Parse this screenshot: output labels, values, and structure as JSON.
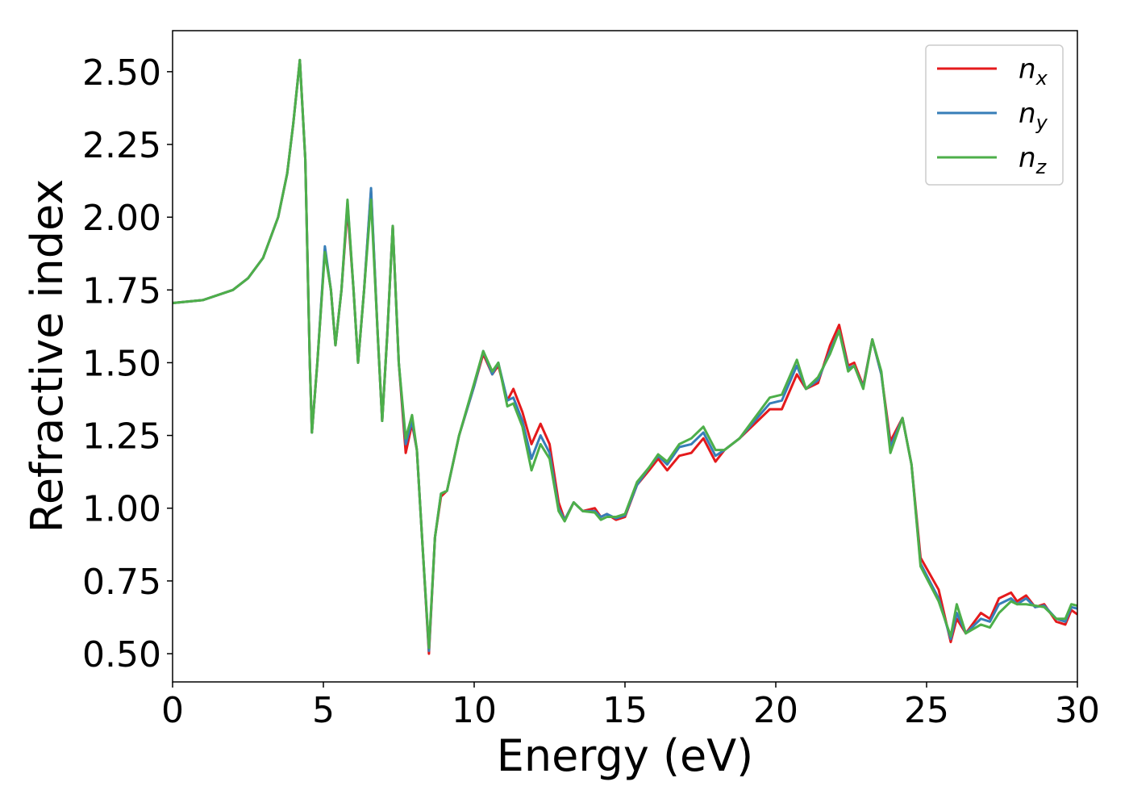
{
  "chart_data": {
    "type": "line",
    "xlabel": "Energy (eV)",
    "ylabel": "Refractive index",
    "x": [
      0,
      1,
      2,
      2.5,
      3,
      3.5,
      3.8,
      4.0,
      4.22,
      4.4,
      4.55,
      4.62,
      4.8,
      5.05,
      5.25,
      5.4,
      5.6,
      5.8,
      6.0,
      6.15,
      6.35,
      6.58,
      6.8,
      6.95,
      7.12,
      7.3,
      7.5,
      7.73,
      7.94,
      8.1,
      8.3,
      8.5,
      8.7,
      8.9,
      9.1,
      9.5,
      10.0,
      10.3,
      10.6,
      10.8,
      11.1,
      11.3,
      11.6,
      11.9,
      12.2,
      12.5,
      12.8,
      13.0,
      13.3,
      13.6,
      14.0,
      14.2,
      14.4,
      14.7,
      15.0,
      15.4,
      15.8,
      16.1,
      16.4,
      16.8,
      17.2,
      17.6,
      18.0,
      18.3,
      18.8,
      19.3,
      19.8,
      20.2,
      20.7,
      21.0,
      21.4,
      21.8,
      22.1,
      22.4,
      22.6,
      22.9,
      23.2,
      23.5,
      23.8,
      24.2,
      24.5,
      24.8,
      25.4,
      25.8,
      26.0,
      26.3,
      26.8,
      27.1,
      27.4,
      27.8,
      28.0,
      28.3,
      28.6,
      28.9,
      29.3,
      29.6,
      29.8,
      30
    ],
    "series": [
      {
        "name": "nx",
        "color": "#e41a1c",
        "values": [
          1.705,
          1.715,
          1.75,
          1.79,
          1.86,
          2.0,
          2.15,
          2.32,
          2.54,
          2.2,
          1.5,
          1.26,
          1.5,
          1.89,
          1.75,
          1.56,
          1.75,
          2.03,
          1.75,
          1.5,
          1.75,
          2.09,
          1.6,
          1.3,
          1.6,
          1.97,
          1.5,
          1.19,
          1.29,
          1.2,
          0.85,
          0.5,
          0.9,
          1.04,
          1.06,
          1.25,
          1.42,
          1.53,
          1.46,
          1.49,
          1.37,
          1.41,
          1.33,
          1.22,
          1.29,
          1.22,
          1.02,
          0.96,
          1.02,
          0.99,
          1.0,
          0.97,
          0.98,
          0.96,
          0.97,
          1.08,
          1.13,
          1.17,
          1.13,
          1.18,
          1.19,
          1.24,
          1.16,
          1.2,
          1.24,
          1.29,
          1.34,
          1.34,
          1.46,
          1.41,
          1.43,
          1.56,
          1.63,
          1.49,
          1.5,
          1.42,
          1.58,
          1.46,
          1.23,
          1.31,
          1.15,
          0.83,
          0.72,
          0.54,
          0.62,
          0.57,
          0.64,
          0.62,
          0.69,
          0.71,
          0.68,
          0.7,
          0.66,
          0.67,
          0.61,
          0.6,
          0.65,
          0.635
        ]
      },
      {
        "name": "ny",
        "color": "#377eb8",
        "values": [
          1.705,
          1.715,
          1.75,
          1.79,
          1.86,
          2.0,
          2.15,
          2.32,
          2.54,
          2.2,
          1.5,
          1.26,
          1.5,
          1.9,
          1.75,
          1.56,
          1.75,
          2.05,
          1.75,
          1.5,
          1.75,
          2.1,
          1.6,
          1.3,
          1.6,
          1.97,
          1.5,
          1.22,
          1.3,
          1.2,
          0.85,
          0.51,
          0.9,
          1.05,
          1.06,
          1.25,
          1.42,
          1.54,
          1.46,
          1.5,
          1.37,
          1.38,
          1.3,
          1.17,
          1.25,
          1.19,
          1.0,
          0.96,
          1.02,
          0.99,
          0.99,
          0.97,
          0.98,
          0.965,
          0.975,
          1.08,
          1.14,
          1.18,
          1.15,
          1.21,
          1.22,
          1.26,
          1.18,
          1.2,
          1.24,
          1.3,
          1.36,
          1.37,
          1.49,
          1.41,
          1.44,
          1.54,
          1.61,
          1.48,
          1.49,
          1.415,
          1.58,
          1.46,
          1.21,
          1.31,
          1.15,
          0.81,
          0.69,
          0.55,
          0.64,
          0.57,
          0.62,
          0.61,
          0.67,
          0.69,
          0.67,
          0.69,
          0.66,
          0.665,
          0.62,
          0.61,
          0.66,
          0.655
        ]
      },
      {
        "name": "nz",
        "color": "#4daf4a",
        "values": [
          1.705,
          1.715,
          1.75,
          1.79,
          1.86,
          2.0,
          2.15,
          2.32,
          2.54,
          2.2,
          1.5,
          1.26,
          1.5,
          1.88,
          1.75,
          1.56,
          1.75,
          2.06,
          1.75,
          1.5,
          1.75,
          2.06,
          1.6,
          1.3,
          1.6,
          1.97,
          1.5,
          1.24,
          1.32,
          1.2,
          0.85,
          0.52,
          0.9,
          1.05,
          1.06,
          1.25,
          1.43,
          1.54,
          1.47,
          1.5,
          1.35,
          1.36,
          1.28,
          1.13,
          1.22,
          1.17,
          0.99,
          0.955,
          1.02,
          0.99,
          0.985,
          0.96,
          0.97,
          0.97,
          0.98,
          1.09,
          1.14,
          1.185,
          1.16,
          1.22,
          1.24,
          1.28,
          1.2,
          1.2,
          1.24,
          1.31,
          1.38,
          1.39,
          1.51,
          1.41,
          1.45,
          1.53,
          1.61,
          1.47,
          1.49,
          1.41,
          1.58,
          1.47,
          1.19,
          1.31,
          1.15,
          0.8,
          0.68,
          0.56,
          0.67,
          0.57,
          0.6,
          0.59,
          0.64,
          0.68,
          0.67,
          0.67,
          0.665,
          0.66,
          0.62,
          0.62,
          0.67,
          0.665
        ]
      }
    ],
    "xlim": [
      0,
      30
    ],
    "xticks": [
      0,
      5,
      10,
      15,
      20,
      25,
      30
    ],
    "ylim": [
      0.403,
      2.641
    ],
    "yticks": [
      {
        "value": 0.5,
        "label": "0.50"
      },
      0.75,
      {
        "value": 1.0,
        "label": "1.00"
      },
      1.25,
      {
        "value": 1.5,
        "label": "1.50"
      },
      1.75,
      {
        "value": 2.0,
        "label": "2.00"
      },
      2.25,
      {
        "value": 2.5,
        "label": "2.50"
      }
    ],
    "legend": "upper right",
    "grid": false
  }
}
